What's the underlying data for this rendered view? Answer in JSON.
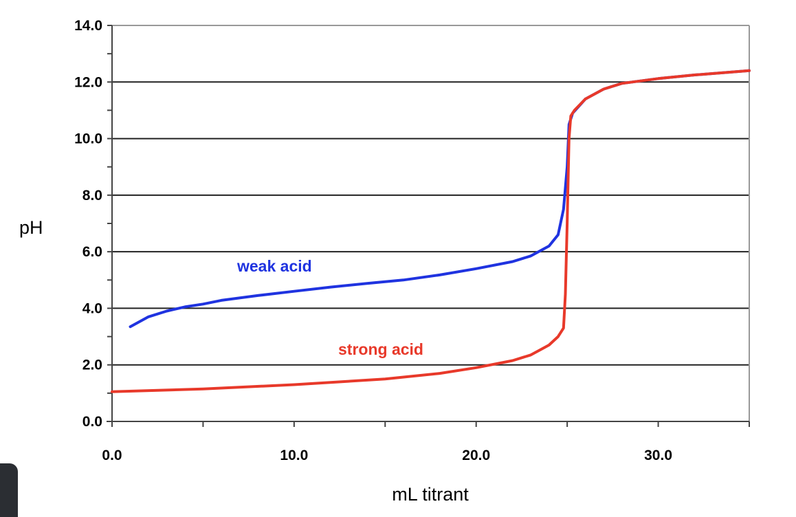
{
  "chart_data": {
    "type": "line",
    "title": "",
    "xlabel": "mL titrant",
    "ylabel": "pH",
    "xlim": [
      0,
      35
    ],
    "ylim": [
      0,
      14
    ],
    "x_ticks": [
      "0.0",
      "10.0",
      "20.0",
      "30.0"
    ],
    "y_ticks": [
      "0.0",
      "2.0",
      "4.0",
      "6.0",
      "8.0",
      "10.0",
      "12.0",
      "14.0"
    ],
    "grid": "horizontal major lines",
    "series": [
      {
        "name": "weak acid",
        "color": "#1f33e0",
        "x": [
          1.0,
          2,
          3,
          4,
          5,
          6,
          8,
          10,
          12,
          14,
          16,
          18,
          20,
          22,
          23,
          24,
          24.5,
          24.8,
          25.0,
          25.1,
          25.3,
          26,
          27,
          28,
          30,
          32,
          35
        ],
        "y": [
          3.35,
          3.7,
          3.9,
          4.05,
          4.15,
          4.28,
          4.45,
          4.6,
          4.75,
          4.88,
          5.0,
          5.18,
          5.4,
          5.65,
          5.85,
          6.2,
          6.6,
          7.5,
          9.0,
          10.5,
          10.9,
          11.4,
          11.75,
          11.95,
          12.12,
          12.25,
          12.4
        ]
      },
      {
        "name": "strong acid",
        "color": "#e8392a",
        "x": [
          0,
          5,
          10,
          15,
          18,
          20,
          22,
          23,
          24,
          24.5,
          24.8,
          24.9,
          25.0,
          25.1,
          25.2,
          25.4,
          26,
          27,
          28,
          30,
          32,
          35
        ],
        "y": [
          1.05,
          1.15,
          1.3,
          1.5,
          1.7,
          1.9,
          2.15,
          2.35,
          2.7,
          3.0,
          3.3,
          4.5,
          7.0,
          10.0,
          10.8,
          11.0,
          11.4,
          11.75,
          11.95,
          12.12,
          12.25,
          12.4
        ]
      }
    ]
  }
}
